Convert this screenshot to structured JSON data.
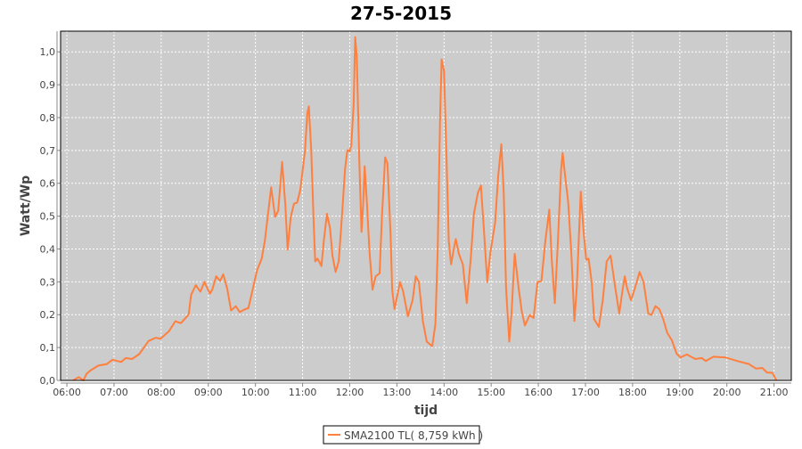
{
  "chart_data": {
    "type": "line",
    "title": "27-5-2015",
    "xlabel": "tijd",
    "ylabel": "Watt/Wp",
    "xlim": [
      "05:52",
      "21:22"
    ],
    "ylim": [
      0,
      1.063
    ],
    "grid": true,
    "legend_position": "bottom",
    "x_ticks": [
      "06:00",
      "07:00",
      "08:00",
      "09:00",
      "10:00",
      "11:00",
      "12:00",
      "13:00",
      "14:00",
      "15:00",
      "16:00",
      "17:00",
      "18:00",
      "19:00",
      "20:00",
      "21:00"
    ],
    "y_ticks": [
      "0,0",
      "0,1",
      "0,2",
      "0,3",
      "0,4",
      "0,5",
      "0,6",
      "0,7",
      "0,8",
      "0,9",
      "1,0"
    ],
    "colors": {
      "series": "#ff7f3f",
      "plot_background": "#cccccc",
      "grid": "#ffffff"
    },
    "series": [
      {
        "name": "SMA2100 TL( 8,759 kWh )",
        "x": [
          "06:08",
          "06:15",
          "06:21",
          "06:25",
          "06:30",
          "06:40",
          "06:51",
          "06:58",
          "07:09",
          "07:15",
          "07:23",
          "07:32",
          "07:44",
          "07:53",
          "07:59",
          "08:10",
          "08:18",
          "08:25",
          "08:35",
          "08:38",
          "08:44",
          "08:50",
          "08:55",
          "09:02",
          "09:05",
          "09:10",
          "09:15",
          "09:19",
          "09:24",
          "09:29",
          "09:35",
          "09:40",
          "09:47",
          "09:51",
          "09:55",
          "10:02",
          "10:08",
          "10:12",
          "10:16",
          "10:20",
          "10:25",
          "10:29",
          "10:34",
          "10:38",
          "10:41",
          "10:45",
          "10:49",
          "10:53",
          "10:57",
          "11:03",
          "11:06",
          "11:08",
          "11:11",
          "11:14",
          "11:16",
          "11:19",
          "11:24",
          "11:27",
          "11:31",
          "11:35",
          "11:38",
          "11:42",
          "11:46",
          "11:50",
          "11:54",
          "11:57",
          "12:00",
          "12:02",
          "12:05",
          "12:07",
          "12:09",
          "12:12",
          "12:15",
          "12:17",
          "12:19",
          "12:22",
          "12:25",
          "12:29",
          "12:33",
          "12:38",
          "12:41",
          "12:45",
          "12:48",
          "12:52",
          "12:54",
          "12:57",
          "13:04",
          "13:08",
          "13:14",
          "13:20",
          "13:24",
          "13:28",
          "13:33",
          "13:38",
          "13:45",
          "13:49",
          "13:52",
          "13:55",
          "13:57",
          "14:00",
          "14:03",
          "14:06",
          "14:09",
          "14:13",
          "14:15",
          "14:19",
          "14:24",
          "14:29",
          "14:34",
          "14:38",
          "14:43",
          "14:47",
          "14:51",
          "14:55",
          "14:59",
          "15:05",
          "15:09",
          "15:13",
          "15:16",
          "15:19",
          "15:23",
          "15:26",
          "15:30",
          "15:35",
          "15:39",
          "15:43",
          "15:49",
          "15:54",
          "15:59",
          "16:04",
          "16:09",
          "16:14",
          "16:17",
          "16:21",
          "16:25",
          "16:29",
          "16:31",
          "16:34",
          "16:38",
          "16:42",
          "16:46",
          "16:49",
          "16:54",
          "16:58",
          "17:01",
          "17:04",
          "17:08",
          "17:11",
          "17:17",
          "17:22",
          "17:27",
          "17:32",
          "17:38",
          "17:43",
          "17:47",
          "17:50",
          "17:53",
          "17:58",
          "18:03",
          "18:09",
          "18:14",
          "18:20",
          "18:24",
          "18:29",
          "18:34",
          "18:39",
          "18:44",
          "18:50",
          "18:56",
          "19:01",
          "19:09",
          "19:20",
          "19:28",
          "19:33",
          "19:43",
          "19:58",
          "20:13",
          "20:28",
          "20:37",
          "20:45",
          "20:51",
          "20:58",
          "21:03"
        ],
        "y": [
          0.0,
          0.01,
          0.0,
          0.02,
          0.03,
          0.045,
          0.05,
          0.063,
          0.056,
          0.068,
          0.065,
          0.08,
          0.12,
          0.13,
          0.127,
          0.15,
          0.18,
          0.174,
          0.2,
          0.26,
          0.29,
          0.27,
          0.3,
          0.264,
          0.276,
          0.317,
          0.303,
          0.323,
          0.28,
          0.213,
          0.226,
          0.208,
          0.217,
          0.22,
          0.262,
          0.335,
          0.371,
          0.425,
          0.507,
          0.588,
          0.498,
          0.516,
          0.665,
          0.534,
          0.398,
          0.498,
          0.538,
          0.541,
          0.579,
          0.697,
          0.814,
          0.834,
          0.697,
          0.489,
          0.362,
          0.371,
          0.348,
          0.425,
          0.507,
          0.462,
          0.38,
          0.33,
          0.362,
          0.498,
          0.643,
          0.701,
          0.697,
          0.715,
          0.842,
          1.045,
          0.986,
          0.679,
          0.452,
          0.534,
          0.652,
          0.534,
          0.398,
          0.276,
          0.317,
          0.326,
          0.498,
          0.679,
          0.661,
          0.443,
          0.276,
          0.217,
          0.299,
          0.271,
          0.195,
          0.244,
          0.317,
          0.299,
          0.181,
          0.118,
          0.104,
          0.172,
          0.398,
          0.805,
          0.977,
          0.941,
          0.697,
          0.425,
          0.353,
          0.407,
          0.43,
          0.385,
          0.353,
          0.235,
          0.371,
          0.507,
          0.57,
          0.593,
          0.452,
          0.299,
          0.389,
          0.48,
          0.624,
          0.719,
          0.57,
          0.281,
          0.118,
          0.208,
          0.385,
          0.281,
          0.208,
          0.167,
          0.199,
          0.19,
          0.299,
          0.303,
          0.425,
          0.52,
          0.371,
          0.235,
          0.425,
          0.643,
          0.692,
          0.624,
          0.543,
          0.389,
          0.181,
          0.285,
          0.575,
          0.443,
          0.367,
          0.371,
          0.299,
          0.186,
          0.163,
          0.244,
          0.362,
          0.38,
          0.281,
          0.204,
          0.271,
          0.317,
          0.281,
          0.244,
          0.281,
          0.33,
          0.299,
          0.204,
          0.199,
          0.226,
          0.217,
          0.186,
          0.145,
          0.122,
          0.081,
          0.07,
          0.079,
          0.065,
          0.068,
          0.059,
          0.072,
          0.07,
          0.059,
          0.05,
          0.036,
          0.038,
          0.024,
          0.023,
          0.0
        ]
      }
    ]
  }
}
